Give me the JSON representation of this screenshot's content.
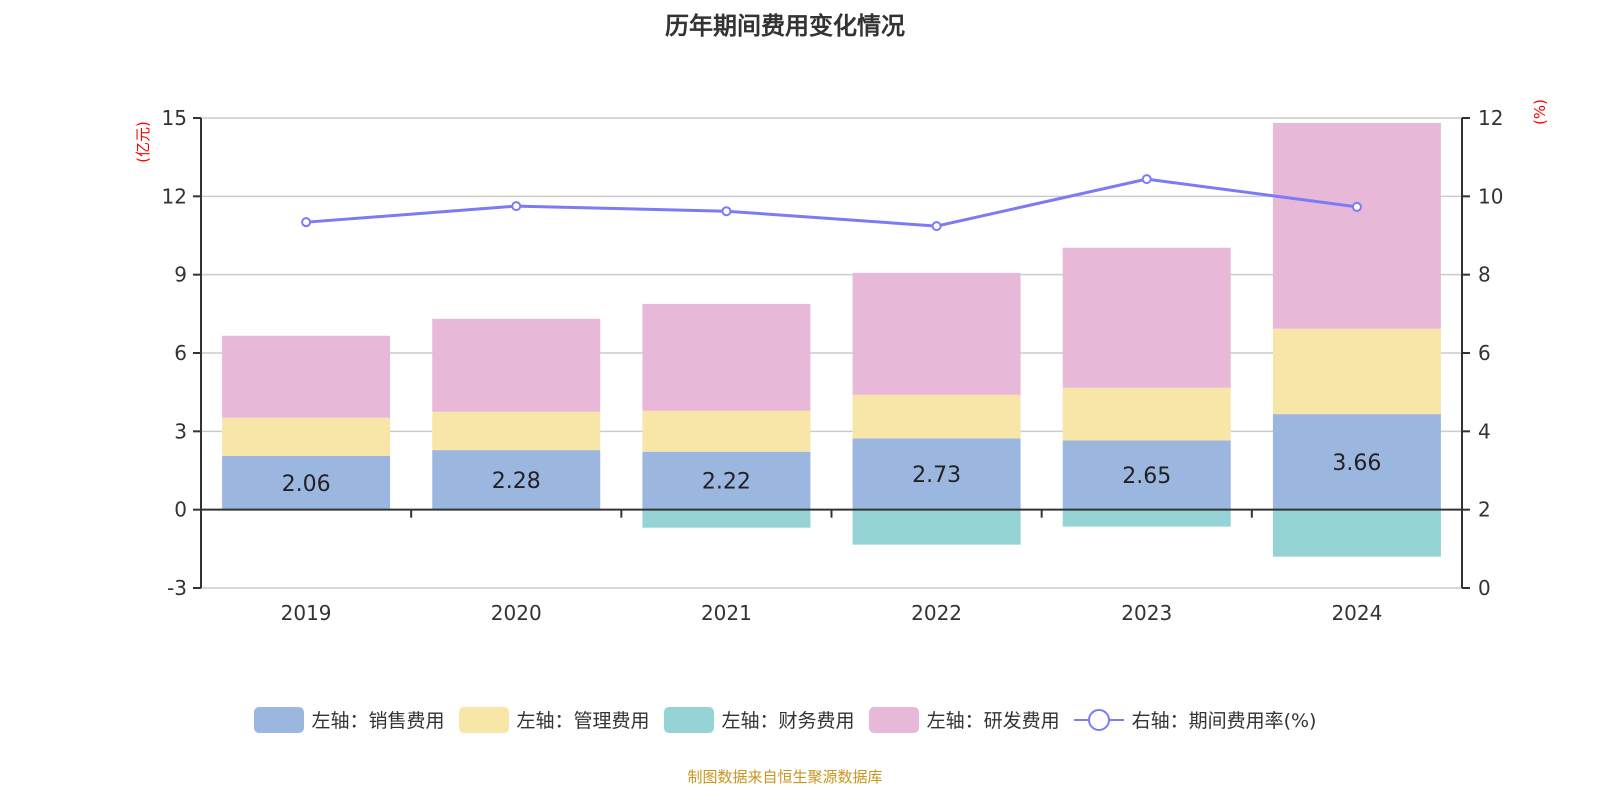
{
  "chart_data": {
    "type": "bar",
    "title": "历年期间费用变化情况",
    "categories": [
      "2019",
      "2020",
      "2021",
      "2022",
      "2023",
      "2024"
    ],
    "left_axis": {
      "label": "(亿元)",
      "ylim": [
        -3,
        15
      ],
      "ticks": [
        -3,
        0,
        3,
        6,
        9,
        12,
        15
      ]
    },
    "right_axis": {
      "label": "(%)",
      "ylim": [
        0,
        12
      ],
      "ticks": [
        0,
        2,
        4,
        6,
        8,
        10,
        12
      ]
    },
    "grid": true,
    "legend_position": "bottom",
    "series": [
      {
        "name": "左轴：销售费用",
        "type": "bar",
        "stack": true,
        "color": "#9bb7e0",
        "values": [
          2.06,
          2.28,
          2.22,
          2.73,
          2.65,
          3.66
        ],
        "show_labels": true
      },
      {
        "name": "左轴：管理费用",
        "type": "bar",
        "stack": true,
        "color": "#f8e6a8",
        "values": [
          1.46,
          1.47,
          1.57,
          1.67,
          2.02,
          3.27
        ]
      },
      {
        "name": "左轴：财务费用",
        "type": "bar",
        "stack": true,
        "color": "#96d3d4",
        "values": [
          -0.02,
          -0.02,
          -0.69,
          -1.34,
          -0.65,
          -1.8
        ]
      },
      {
        "name": "左轴：研发费用",
        "type": "bar",
        "stack": true,
        "color": "#e7b8d8",
        "values": [
          3.14,
          3.56,
          4.09,
          4.67,
          5.36,
          7.88
        ]
      },
      {
        "name": "右轴：期间费用率(%)",
        "type": "line",
        "axis": "right",
        "color": "#7b7bf5",
        "values": [
          9.34,
          9.75,
          9.62,
          9.24,
          10.44,
          9.73
        ]
      }
    ]
  },
  "source": "制图数据来自恒生聚源数据库"
}
